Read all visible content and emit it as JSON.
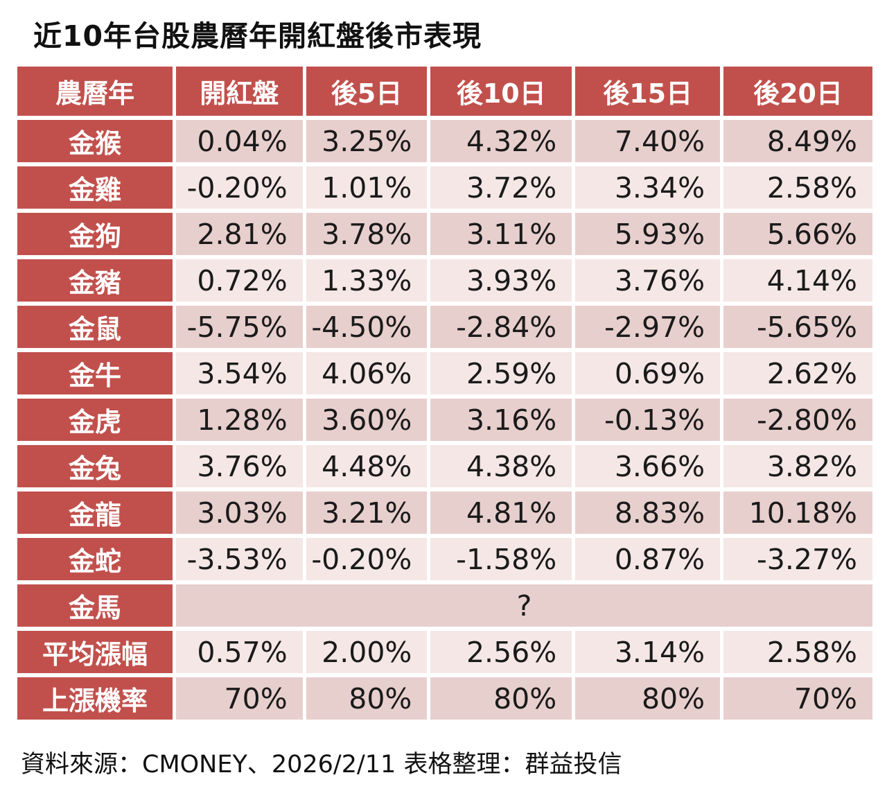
{
  "title": "近10年台股農曆年開紅盤後市表現",
  "footer": "資料來源：CMONEY、2026/2/11  表格整理：群益投信",
  "colors": {
    "header_red": "#c1504c",
    "row_dark_pink": "#e7cfcd",
    "row_light_pink": "#f4e7e5",
    "text": "#111111",
    "header_text": "#ffffff"
  },
  "table": {
    "headers": [
      "農曆年",
      "開紅盤",
      "後5日",
      "後10日",
      "後15日",
      "後20日"
    ],
    "rows": [
      {
        "label": "金猴",
        "values": [
          "0.04%",
          "3.25%",
          "4.32%",
          "7.40%",
          "8.49%"
        ]
      },
      {
        "label": "金雞",
        "values": [
          "-0.20%",
          "1.01%",
          "3.72%",
          "3.34%",
          "2.58%"
        ]
      },
      {
        "label": "金狗",
        "values": [
          "2.81%",
          "3.78%",
          "3.11%",
          "5.93%",
          "5.66%"
        ]
      },
      {
        "label": "金豬",
        "values": [
          "0.72%",
          "1.33%",
          "3.93%",
          "3.76%",
          "4.14%"
        ]
      },
      {
        "label": "金鼠",
        "values": [
          "-5.75%",
          "-4.50%",
          "-2.84%",
          "-2.97%",
          "-5.65%"
        ]
      },
      {
        "label": "金牛",
        "values": [
          "3.54%",
          "4.06%",
          "2.59%",
          "0.69%",
          "2.62%"
        ]
      },
      {
        "label": "金虎",
        "values": [
          "1.28%",
          "3.60%",
          "3.16%",
          "-0.13%",
          "-2.80%"
        ]
      },
      {
        "label": "金兔",
        "values": [
          "3.76%",
          "4.48%",
          "4.38%",
          "3.66%",
          "3.82%"
        ]
      },
      {
        "label": "金龍",
        "values": [
          "3.03%",
          "3.21%",
          "4.81%",
          "8.83%",
          "10.18%"
        ]
      },
      {
        "label": "金蛇",
        "values": [
          "-3.53%",
          "-0.20%",
          "-1.58%",
          "0.87%",
          "-3.27%"
        ]
      },
      {
        "label": "金馬",
        "merged": true,
        "merged_value": "?"
      },
      {
        "label": "平均漲幅",
        "values": [
          "0.57%",
          "2.00%",
          "2.56%",
          "3.14%",
          "2.58%"
        ]
      },
      {
        "label": "上漲機率",
        "values": [
          "70%",
          "80%",
          "80%",
          "80%",
          "70%"
        ]
      }
    ]
  },
  "chart_data": {
    "type": "table",
    "title": "近10年台股農曆年開紅盤後市表現",
    "columns": [
      "農曆年",
      "開紅盤",
      "後5日",
      "後10日",
      "後15日",
      "後20日"
    ],
    "unit": "percent",
    "rows": [
      {
        "label": "金猴",
        "values": [
          0.04,
          3.25,
          4.32,
          7.4,
          8.49
        ]
      },
      {
        "label": "金雞",
        "values": [
          -0.2,
          1.01,
          3.72,
          3.34,
          2.58
        ]
      },
      {
        "label": "金狗",
        "values": [
          2.81,
          3.78,
          3.11,
          5.93,
          5.66
        ]
      },
      {
        "label": "金豬",
        "values": [
          0.72,
          1.33,
          3.93,
          3.76,
          4.14
        ]
      },
      {
        "label": "金鼠",
        "values": [
          -5.75,
          -4.5,
          -2.84,
          -2.97,
          -5.65
        ]
      },
      {
        "label": "金牛",
        "values": [
          3.54,
          4.06,
          2.59,
          0.69,
          2.62
        ]
      },
      {
        "label": "金虎",
        "values": [
          1.28,
          3.6,
          3.16,
          -0.13,
          -2.8
        ]
      },
      {
        "label": "金兔",
        "values": [
          3.76,
          4.48,
          4.38,
          3.66,
          3.82
        ]
      },
      {
        "label": "金龍",
        "values": [
          3.03,
          3.21,
          4.81,
          8.83,
          10.18
        ]
      },
      {
        "label": "金蛇",
        "values": [
          -3.53,
          -0.2,
          -1.58,
          0.87,
          -3.27
        ]
      },
      {
        "label": "金馬",
        "values": null,
        "note": "?"
      },
      {
        "label": "平均漲幅",
        "values": [
          0.57,
          2.0,
          2.56,
          3.14,
          2.58
        ]
      },
      {
        "label": "上漲機率",
        "values": [
          70,
          80,
          80,
          80,
          70
        ]
      }
    ],
    "source_note": "資料來源：CMONEY、2026/2/11  表格整理：群益投信"
  }
}
